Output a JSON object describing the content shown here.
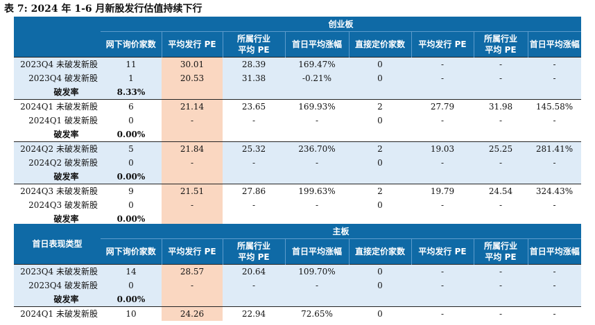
{
  "title": "表 7: 2024 年 1-6 月新股发行估值持续下行",
  "columns": [
    "网下询价家数",
    "平均发行 PE",
    "所属行业平均 PE",
    "首日平均涨幅",
    "直接定价家数",
    "平均发行 PE",
    "所属行业平均 PE",
    "首日平均涨幅"
  ],
  "column_lines": [
    [
      "网下询价家数"
    ],
    [
      "平均发行 PE"
    ],
    [
      "所属行业",
      "平均 PE"
    ],
    [
      "首日平均涨幅"
    ],
    [
      "直接定价家数"
    ],
    [
      "平均发行 PE"
    ],
    [
      "所属行业",
      "平均 PE"
    ],
    [
      "首日平均涨幅"
    ]
  ],
  "colors": {
    "header_bg": "#0f6aa6",
    "shade_bg": "#deebf7",
    "peach_bg": "#fad7c1"
  },
  "sections": [
    {
      "name": "创业板",
      "corner_label": "",
      "groups": [
        {
          "shaded": true,
          "rows": [
            {
              "label": "2023Q4 未破发新股",
              "cells": [
                "11",
                "30.01",
                "28.39",
                "169.47%",
                "0",
                "-",
                "-",
                "-"
              ]
            },
            {
              "label": "2023Q4 破发新股",
              "cells": [
                "1",
                "20.53",
                "31.38",
                "-0.21%",
                "0",
                "-",
                "-",
                "-"
              ]
            },
            {
              "label": "破发率",
              "cells": [
                "8.33%",
                "",
                "",
                "",
                "",
                "",
                "",
                ""
              ],
              "rate": true
            }
          ]
        },
        {
          "shaded": false,
          "rows": [
            {
              "label": "2024Q1 未破发新股",
              "cells": [
                "6",
                "21.14",
                "23.65",
                "169.93%",
                "2",
                "27.79",
                "31.98",
                "145.58%"
              ]
            },
            {
              "label": "2024Q1 破发新股",
              "cells": [
                "0",
                "-",
                "-",
                "-",
                "0",
                "-",
                "-",
                "-"
              ]
            },
            {
              "label": "破发率",
              "cells": [
                "0.00%",
                "",
                "",
                "",
                "",
                "",
                "",
                ""
              ],
              "rate": true
            }
          ]
        },
        {
          "shaded": true,
          "rows": [
            {
              "label": "2024Q2 未破发新股",
              "cells": [
                "5",
                "21.84",
                "25.32",
                "236.70%",
                "2",
                "19.03",
                "25.25",
                "281.41%"
              ]
            },
            {
              "label": "2024Q2 破发新股",
              "cells": [
                "0",
                "-",
                "-",
                "-",
                "0",
                "-",
                "-",
                "-"
              ]
            },
            {
              "label": "破发率",
              "cells": [
                "0.00%",
                "",
                "",
                "",
                "",
                "",
                "",
                ""
              ],
              "rate": true
            }
          ]
        },
        {
          "shaded": false,
          "rows": [
            {
              "label": "2024Q3 未破发新股",
              "cells": [
                "9",
                "21.51",
                "27.86",
                "199.63%",
                "2",
                "19.79",
                "24.54",
                "324.43%"
              ]
            },
            {
              "label": "2024Q3 破发新股",
              "cells": [
                "0",
                "-",
                "-",
                "-",
                "0",
                "-",
                "-",
                "-"
              ]
            },
            {
              "label": "破发率",
              "cells": [
                "0.00%",
                "",
                "",
                "",
                "",
                "",
                "",
                ""
              ],
              "rate": true
            }
          ]
        }
      ]
    },
    {
      "name": "主板",
      "corner_label": "首日表现类型",
      "groups": [
        {
          "shaded": true,
          "rows": [
            {
              "label": "2023Q4 未破发新股",
              "cells": [
                "14",
                "28.57",
                "20.64",
                "109.70%",
                "0",
                "-",
                "-",
                "-"
              ]
            },
            {
              "label": "2023Q4 破发新股",
              "cells": [
                "0",
                "-",
                "-",
                "-",
                "0",
                "-",
                "-",
                "-"
              ]
            },
            {
              "label": "破发率",
              "cells": [
                "0.00%",
                "",
                "",
                "",
                "",
                "",
                "",
                ""
              ],
              "rate": true
            }
          ]
        },
        {
          "shaded": false,
          "rows": [
            {
              "label": "2024Q1 未破发新股",
              "cells": [
                "10",
                "24.26",
                "22.94",
                "72.65%",
                "0",
                "-",
                "-",
                "-"
              ]
            }
          ]
        }
      ]
    }
  ]
}
